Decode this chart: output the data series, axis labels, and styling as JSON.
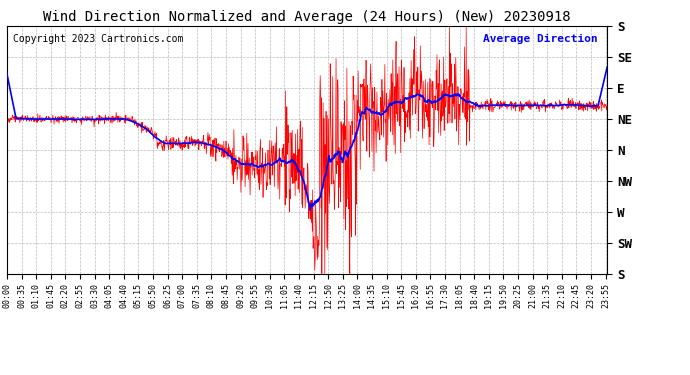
{
  "title": "Wind Direction Normalized and Average (24 Hours) (New) 20230918",
  "copyright": "Copyright 2023 Cartronics.com",
  "legend_label": "Average Direction",
  "background_color": "#ffffff",
  "plot_bg_color": "#ffffff",
  "grid_color": "#aaaaaa",
  "title_color": "#000000",
  "copyright_color": "#000000",
  "legend_color": "#0000ff",
  "wind_line_color": "#ff0000",
  "avg_line_color": "#0000ff",
  "ytick_labels": [
    "S",
    "SE",
    "E",
    "NE",
    "N",
    "NW",
    "W",
    "SW",
    "S"
  ],
  "ytick_values": [
    0,
    45,
    90,
    135,
    180,
    225,
    270,
    315,
    360
  ],
  "ylim": [
    360,
    0
  ],
  "figsize": [
    6.9,
    3.75
  ],
  "dpi": 100
}
